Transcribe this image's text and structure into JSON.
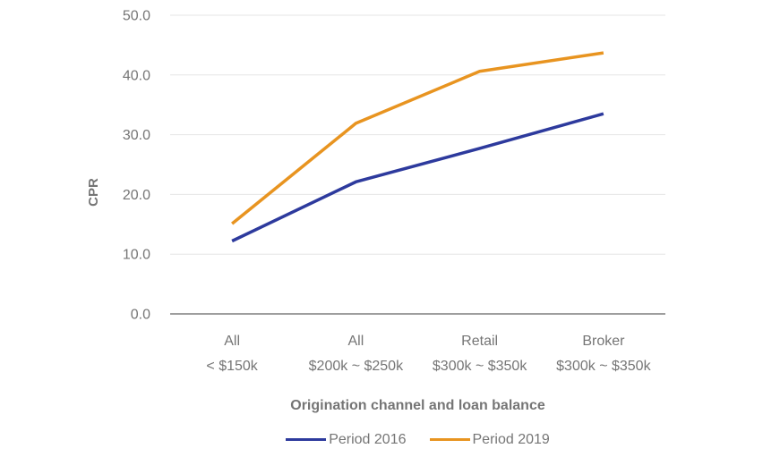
{
  "page": {
    "background": "#ffffff"
  },
  "colors": {
    "text_muted": "#757575",
    "gridline": "#e6e6e6",
    "baseline": "#9e9e9e",
    "series_2016": "#2d3a9d",
    "series_2019": "#e89420"
  },
  "chart_data": {
    "type": "line",
    "xlabel": "Origination channel and loan balance",
    "ylabel": "CPR",
    "ylim": [
      0,
      50
    ],
    "grid": true,
    "legend_position": "bottom",
    "categories": [
      {
        "line1": "All",
        "line2": "< $150k"
      },
      {
        "line1": "All",
        "line2": "$200k ~ $250k"
      },
      {
        "line1": "Retail",
        "line2": "$300k ~ $350k"
      },
      {
        "line1": "Broker",
        "line2": "$300k ~ $350k"
      }
    ],
    "yticks": [
      {
        "value": 0,
        "label": "0.0"
      },
      {
        "value": 10,
        "label": "10.0"
      },
      {
        "value": 20,
        "label": "20.0"
      },
      {
        "value": 30,
        "label": "30.0"
      },
      {
        "value": 40,
        "label": "40.0"
      },
      {
        "value": 50,
        "label": "50.0"
      }
    ],
    "series": [
      {
        "name": "Period 2016",
        "color": "#2d3a9d",
        "values": [
          12.2,
          22.1,
          27.7,
          33.5
        ]
      },
      {
        "name": "Period 2019",
        "color": "#e89420",
        "values": [
          15.1,
          31.9,
          40.6,
          43.7
        ]
      }
    ]
  }
}
